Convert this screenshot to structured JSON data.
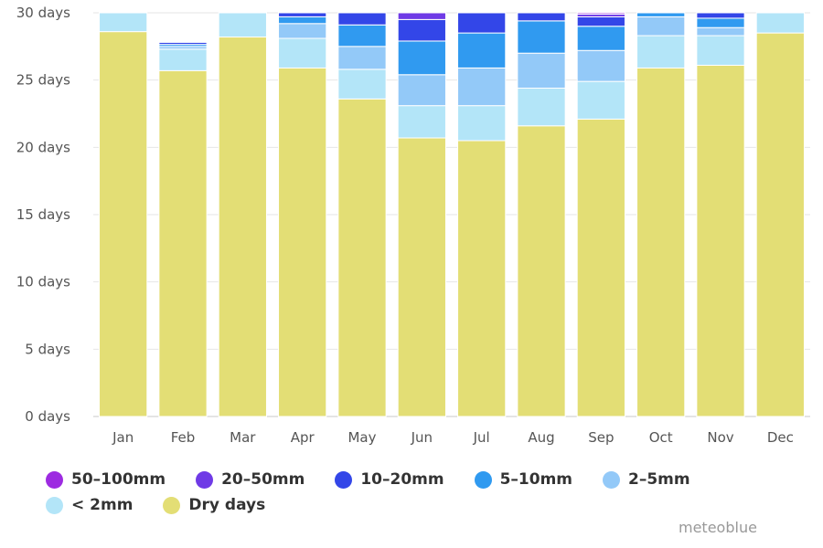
{
  "chart_data": {
    "type": "bar",
    "stacked": true,
    "categories": [
      "Jan",
      "Feb",
      "Mar",
      "Apr",
      "May",
      "Jun",
      "Jul",
      "Aug",
      "Sep",
      "Oct",
      "Nov",
      "Dec"
    ],
    "ylim": [
      0,
      30
    ],
    "yticks": [
      0,
      5,
      10,
      15,
      20,
      25,
      30
    ],
    "ytick_labels": [
      "0 days",
      "5 days",
      "10 days",
      "15 days",
      "20 days",
      "25 days",
      "30 days"
    ],
    "grid": true,
    "legend_position": "bottom",
    "series": [
      {
        "name": "Dry days",
        "color": "#e3de75",
        "values": [
          28.6,
          25.7,
          28.2,
          25.9,
          23.6,
          20.7,
          20.5,
          21.6,
          22.1,
          25.9,
          26.1,
          28.5
        ]
      },
      {
        "name": "< 2mm",
        "color": "#b3e5f8",
        "values": [
          1.4,
          1.6,
          1.8,
          2.2,
          2.2,
          2.4,
          2.6,
          2.8,
          2.8,
          2.4,
          2.2,
          1.5
        ]
      },
      {
        "name": "2-5mm",
        "color": "#93c9f8",
        "values": [
          0,
          0.2,
          0,
          1.1,
          1.7,
          2.3,
          2.8,
          2.6,
          2.3,
          1.4,
          0.6,
          0
        ]
      },
      {
        "name": "5-10mm",
        "color": "#309af0",
        "values": [
          0,
          0.15,
          0,
          0.5,
          1.6,
          2.5,
          2.6,
          2.4,
          1.8,
          0.3,
          0.7,
          0
        ]
      },
      {
        "name": "10-20mm",
        "color": "#3346e8",
        "values": [
          0,
          0.15,
          0,
          0.3,
          0.9,
          1.6,
          1.5,
          0.6,
          0.7,
          0,
          0.4,
          0
        ]
      },
      {
        "name": "20-50mm",
        "color": "#6f3ae6",
        "values": [
          0,
          0,
          0,
          0,
          0,
          0.5,
          0,
          0,
          0.2,
          0,
          0,
          0
        ]
      },
      {
        "name": "50-100mm",
        "color": "#9d2be1",
        "values": [
          0,
          0,
          0,
          0,
          0,
          0,
          0,
          0,
          0.1,
          0,
          0,
          0
        ]
      }
    ]
  },
  "legend": [
    {
      "label": "50–100mm",
      "color": "#9d2be1"
    },
    {
      "label": "20–50mm",
      "color": "#6f3ae6"
    },
    {
      "label": "10–20mm",
      "color": "#3346e8"
    },
    {
      "label": "5–10mm",
      "color": "#309af0"
    },
    {
      "label": "2–5mm",
      "color": "#93c9f8"
    },
    {
      "label": "< 2mm",
      "color": "#b3e5f8"
    },
    {
      "label": "Dry days",
      "color": "#e3de75"
    }
  ],
  "credit": "meteoblue"
}
